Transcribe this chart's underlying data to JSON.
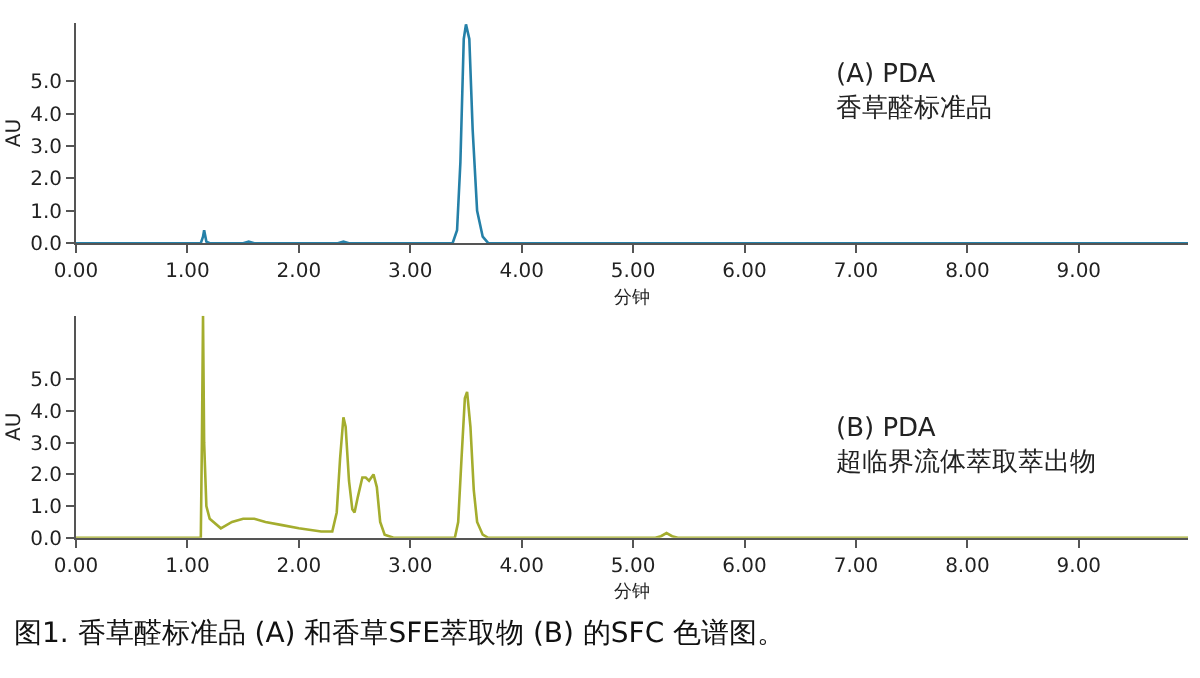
{
  "chart_data": [
    {
      "type": "line",
      "title": "(A) PDA",
      "subtitle": "香草醛标准品",
      "xlabel": "分钟",
      "ylabel": "AU",
      "xlim": [
        0,
        9.98
      ],
      "ylim": [
        0,
        6.8
      ],
      "xticks": [
        {
          "value": 0,
          "label": "0.00"
        },
        {
          "value": 1,
          "label": "1.00"
        },
        {
          "value": 2,
          "label": "2.00"
        },
        {
          "value": 3,
          "label": "3.00"
        },
        {
          "value": 4,
          "label": "4.00"
        },
        {
          "value": 5,
          "label": "5.00"
        },
        {
          "value": 6,
          "label": "6.00"
        },
        {
          "value": 7,
          "label": "7.00"
        },
        {
          "value": 8,
          "label": "8.00"
        },
        {
          "value": 9,
          "label": "9.00"
        }
      ],
      "yticks": [
        {
          "value": 0,
          "label": "0.0"
        },
        {
          "value": 1,
          "label": "1.0"
        },
        {
          "value": 2,
          "label": "2.0"
        },
        {
          "value": 3,
          "label": "3.0"
        },
        {
          "value": 4,
          "label": "4.0"
        },
        {
          "value": 5,
          "label": "5.0"
        }
      ],
      "marker": "none",
      "line_style": "solid",
      "series": [
        {
          "color": "#2580a8",
          "x": [
            0,
            1.12,
            1.14,
            1.15,
            1.17,
            1.2,
            1.5,
            1.55,
            1.6,
            2.35,
            2.4,
            2.45,
            3.38,
            3.42,
            3.45,
            3.48,
            3.5,
            3.53,
            3.56,
            3.6,
            3.65,
            3.7,
            4.0,
            9.98
          ],
          "values": [
            0,
            0,
            0.2,
            0.4,
            0.05,
            0,
            0,
            0.05,
            0,
            0,
            0.05,
            0,
            0,
            0.4,
            2.5,
            6.3,
            6.75,
            6.3,
            3.5,
            1.0,
            0.2,
            0,
            0,
            0
          ]
        }
      ]
    },
    {
      "type": "line",
      "title": "(B) PDA",
      "subtitle": "超临界流体萃取萃出物",
      "xlabel": "分钟",
      "ylabel": "AU",
      "xlim": [
        0,
        9.98
      ],
      "ylim": [
        0,
        7.0
      ],
      "xticks": [
        {
          "value": 0,
          "label": "0.00"
        },
        {
          "value": 1,
          "label": "1.00"
        },
        {
          "value": 2,
          "label": "2.00"
        },
        {
          "value": 3,
          "label": "3.00"
        },
        {
          "value": 4,
          "label": "4.00"
        },
        {
          "value": 5,
          "label": "5.00"
        },
        {
          "value": 6,
          "label": "6.00"
        },
        {
          "value": 7,
          "label": "7.00"
        },
        {
          "value": 8,
          "label": "8.00"
        },
        {
          "value": 9,
          "label": "9.00"
        }
      ],
      "yticks": [
        {
          "value": 0,
          "label": "0.0"
        },
        {
          "value": 1,
          "label": "1.0"
        },
        {
          "value": 2,
          "label": "2.0"
        },
        {
          "value": 3,
          "label": "3.0"
        },
        {
          "value": 4,
          "label": "4.0"
        },
        {
          "value": 5,
          "label": "5.0"
        }
      ],
      "marker": "none",
      "line_style": "solid",
      "annotations": [
        "图1. 香草醛标准品 (A) 和香草SFE萃取物 (B) 的SFC 色谱图。"
      ],
      "series": [
        {
          "color": "#a4ad2e",
          "x": [
            0,
            1.12,
            1.13,
            1.14,
            1.15,
            1.17,
            1.2,
            1.3,
            1.4,
            1.5,
            1.6,
            1.7,
            1.85,
            2.0,
            2.2,
            2.3,
            2.34,
            2.37,
            2.4,
            2.42,
            2.45,
            2.48,
            2.5,
            2.53,
            2.57,
            2.6,
            2.63,
            2.67,
            2.7,
            2.73,
            2.77,
            2.85,
            3.4,
            3.43,
            3.46,
            3.49,
            3.51,
            3.54,
            3.57,
            3.6,
            3.65,
            3.7,
            5.2,
            5.25,
            5.3,
            5.35,
            5.4,
            9.98
          ],
          "values": [
            0,
            0,
            3.0,
            7.0,
            3.0,
            1.0,
            0.6,
            0.3,
            0.5,
            0.6,
            0.6,
            0.5,
            0.4,
            0.3,
            0.2,
            0.2,
            0.8,
            2.5,
            3.8,
            3.5,
            1.8,
            0.9,
            0.8,
            1.3,
            1.9,
            1.9,
            1.8,
            2.0,
            1.6,
            0.5,
            0.1,
            0,
            0,
            0.5,
            2.5,
            4.4,
            4.6,
            3.5,
            1.5,
            0.5,
            0.1,
            0,
            0,
            0.05,
            0.15,
            0.05,
            0,
            0
          ]
        }
      ]
    }
  ]
}
